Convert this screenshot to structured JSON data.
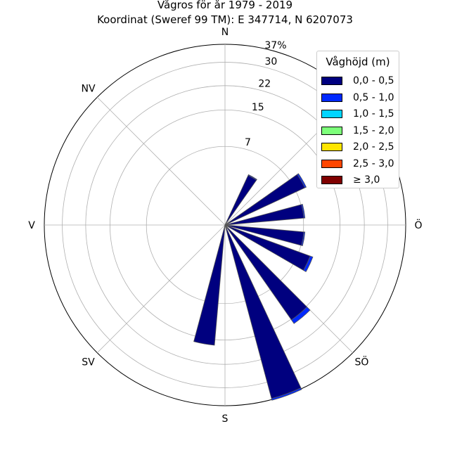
{
  "title": {
    "line1": "Vågros för år 1979 - 2019",
    "line2": "Koordinat (Sweref 99 TM): E 347714, N 6207073"
  },
  "chart_data": {
    "type": "wind-rose",
    "directions": [
      "N",
      "NO",
      "Ö",
      "SÖ",
      "S",
      "SV",
      "V",
      "NV"
    ],
    "radial_ticks": [
      "7",
      "15",
      "22",
      "30",
      "37%"
    ],
    "radial_max_percent": 37,
    "sector_width_deg": 10,
    "legend_title": "Våghöjd (m)",
    "legend_position": "top-right",
    "series": [
      {
        "name": "0,0 - 0,5",
        "color": "#00007f"
      },
      {
        "name": "0,5 - 1,0",
        "color": "#0029ff"
      },
      {
        "name": "1,0 - 1,5",
        "color": "#00d5ff"
      },
      {
        "name": "1,5 - 2,0",
        "color": "#7dff7a"
      },
      {
        "name": "2,0 - 2,5",
        "color": "#ffe500"
      },
      {
        "name": "2,5 - 3,0",
        "color": "#ff4600"
      },
      {
        "name": "≥ 3,0",
        "color": "#7f0000"
      }
    ],
    "sectors": [
      {
        "direction_deg": 30,
        "values": [
          3.4,
          0.1,
          0,
          0,
          0,
          0,
          0
        ]
      },
      {
        "direction_deg": 60,
        "values": [
          8.8,
          0.3,
          0,
          0,
          0,
          0,
          0
        ]
      },
      {
        "direction_deg": 80,
        "values": [
          7.1,
          0.2,
          0,
          0,
          0,
          0,
          0
        ]
      },
      {
        "direction_deg": 100,
        "values": [
          7.1,
          0.2,
          0,
          0,
          0,
          0,
          0
        ]
      },
      {
        "direction_deg": 115,
        "values": [
          9.3,
          0.6,
          0,
          0,
          0,
          0,
          0
        ]
      },
      {
        "direction_deg": 140,
        "values": [
          15.2,
          1.2,
          0,
          0,
          0,
          0,
          0
        ]
      },
      {
        "direction_deg": 160,
        "values": [
          36.6,
          0.7,
          0,
          0,
          0,
          0,
          0
        ]
      },
      {
        "direction_deg": 190,
        "values": [
          16.5,
          0,
          0,
          0,
          0,
          0,
          0
        ]
      }
    ]
  }
}
